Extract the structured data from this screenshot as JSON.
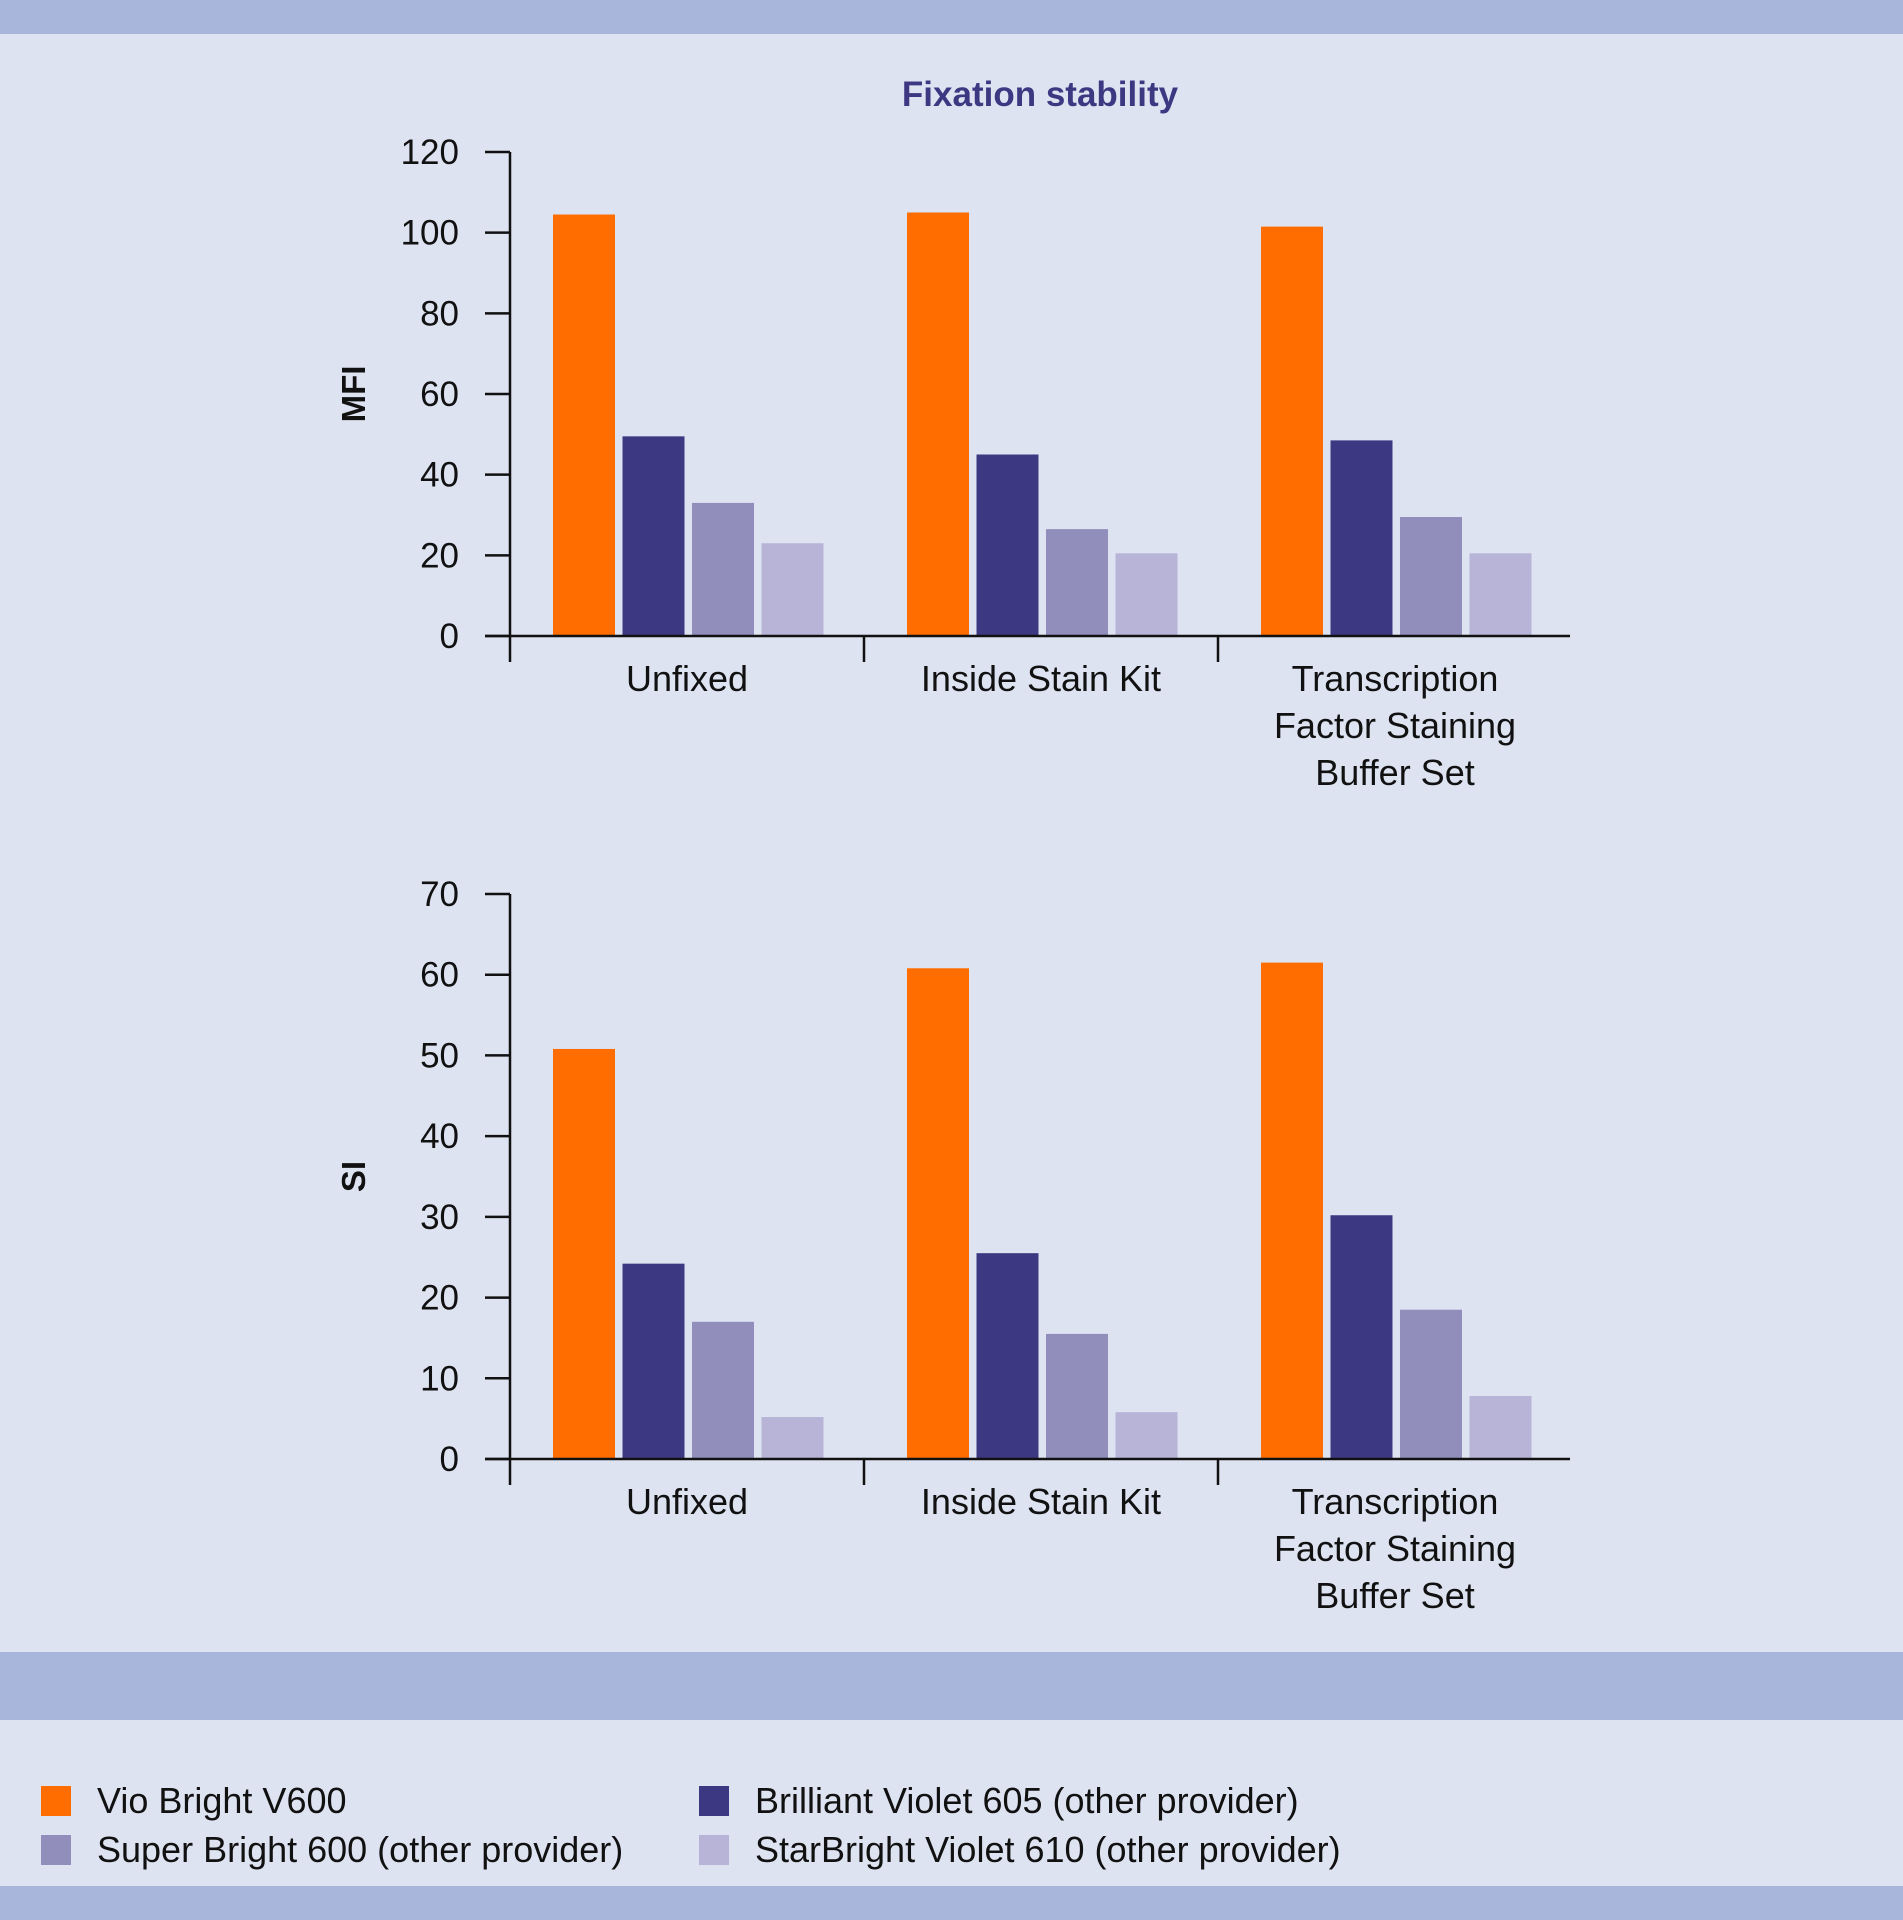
{
  "chart_data": [
    {
      "type": "bar",
      "title": "Fixation stability",
      "xlabel": "",
      "ylabel": "MFI",
      "ylim": [
        0,
        120
      ],
      "yticks": [
        "0",
        "20",
        "40",
        "60",
        "80",
        "100",
        "120"
      ],
      "categories": [
        [
          "Unfixed"
        ],
        [
          "Inside Stain Kit"
        ],
        [
          "Transcription",
          "Factor Staining",
          "Buffer Set"
        ]
      ],
      "series": [
        {
          "name": "Vio Bright V600",
          "color": "#ff6d00",
          "values": [
            104.5,
            105,
            101.5
          ]
        },
        {
          "name": "Brilliant Violet 605 (other provider)",
          "color": "#3c3881",
          "values": [
            49.5,
            45,
            48.5
          ]
        },
        {
          "name": "Super Bright 600 (other provider)",
          "color": "#918ebc",
          "values": [
            33,
            26.5,
            29.5
          ]
        },
        {
          "name": "StarBright Violet 610 (other provider)",
          "color": "#b7b4d7",
          "values": [
            23,
            20.5,
            20.5
          ]
        }
      ]
    },
    {
      "type": "bar",
      "title": "",
      "xlabel": "",
      "ylabel": "SI",
      "ylim": [
        0,
        70
      ],
      "yticks": [
        "0",
        "10",
        "20",
        "30",
        "40",
        "50",
        "60",
        "70"
      ],
      "categories": [
        [
          "Unfixed"
        ],
        [
          "Inside Stain Kit"
        ],
        [
          "Transcription",
          "Factor Staining",
          "Buffer Set"
        ]
      ],
      "series": [
        {
          "name": "Vio Bright V600",
          "color": "#ff6d00",
          "values": [
            50.8,
            60.8,
            61.5
          ]
        },
        {
          "name": "Brilliant Violet 605 (other provider)",
          "color": "#3c3881",
          "values": [
            24.2,
            25.5,
            30.2
          ]
        },
        {
          "name": "Super Bright 600 (other provider)",
          "color": "#918ebc",
          "values": [
            17,
            15.5,
            18.5
          ]
        },
        {
          "name": "StarBright Violet 610 (other provider)",
          "color": "#b7b4d7",
          "values": [
            5.2,
            5.8,
            7.8
          ]
        }
      ]
    }
  ],
  "legend": {
    "items": [
      {
        "label": "Vio Bright V600",
        "color": "#ff6d00"
      },
      {
        "label": "Brilliant Violet 605 (other provider)",
        "color": "#3c3881"
      },
      {
        "label": "Super Bright 600 (other provider)",
        "color": "#918ebc"
      },
      {
        "label": "StarBright Violet 610 (other provider)",
        "color": "#b7b4d7"
      }
    ]
  },
  "colors": {
    "background": "#dee3f1",
    "band": "#a8b6dc",
    "title": "#3c3881",
    "axis": "#111111"
  }
}
